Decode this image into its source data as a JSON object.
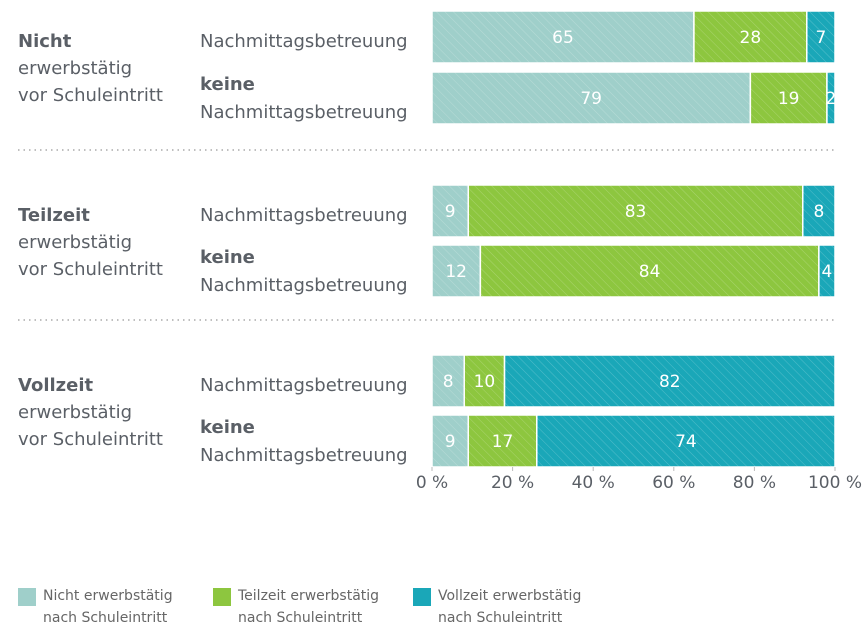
{
  "chart_data": {
    "type": "stacked-bar-horizontal",
    "groups": [
      {
        "name": "Nicht",
        "lines": [
          "erwerbstätig",
          "vor Schuleintritt"
        ]
      },
      {
        "name": "Teilzeit",
        "lines": [
          "erwerbstätig",
          "vor Schuleintritt"
        ]
      },
      {
        "name": "Vollzeit",
        "lines": [
          "erwerbstätig",
          "vor Schuleintritt"
        ]
      }
    ],
    "categories": [
      [
        "Nachmittagsbetreuung"
      ],
      [
        "keine",
        "Nachmittagsbetreuung"
      ],
      [
        "Nachmittagsbetreuung"
      ],
      [
        "keine",
        "Nachmittagsbetreuung"
      ],
      [
        "Nachmittagsbetreuung"
      ],
      [
        "keine",
        "Nachmittagsbetreuung"
      ]
    ],
    "series": [
      {
        "name": "Nicht erwerbstätig nach Schuleintritt",
        "color": "#9fcfca",
        "values": [
          65,
          79,
          9,
          12,
          8,
          9
        ]
      },
      {
        "name": "Teilzeit erwerbstätig nach Schuleintritt",
        "color": "#8dc63f",
        "values": [
          28,
          19,
          83,
          84,
          10,
          17
        ]
      },
      {
        "name": "Vollzeit erwerbstätig nach Schuleintritt",
        "color": "#1aa7b8",
        "values": [
          7,
          2,
          8,
          4,
          82,
          74
        ]
      }
    ],
    "xlim": [
      0,
      100
    ],
    "xticks": [
      {
        "value": 0,
        "label": "0 %"
      },
      {
        "value": 20,
        "label": "20 %"
      },
      {
        "value": 40,
        "label": "40 %"
      },
      {
        "value": 60,
        "label": "60 %"
      },
      {
        "value": 80,
        "label": "80 %"
      },
      {
        "value": 100,
        "label": "100 %"
      }
    ]
  }
}
